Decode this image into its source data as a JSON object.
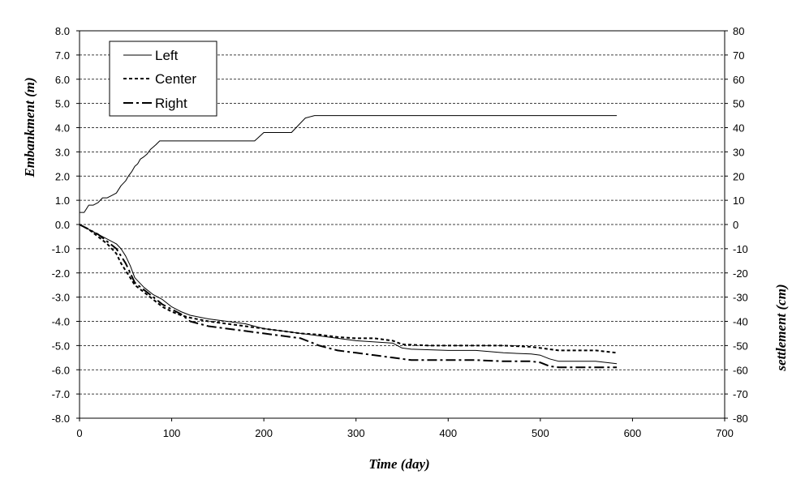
{
  "chart_data": {
    "type": "line",
    "title": "",
    "xlabel": "Time (day)",
    "ylabel_left": "Embankment (m)",
    "ylabel_right": "settlement (cm)",
    "xlim": [
      0,
      700
    ],
    "ylim_left": [
      -8,
      8
    ],
    "ylim_right": [
      -80,
      80
    ],
    "x_ticks": [
      "0",
      "100",
      "200",
      "300",
      "400",
      "500",
      "600",
      "700"
    ],
    "y_left_ticks": [
      "8.0",
      "7.0",
      "6.0",
      "5.0",
      "4.0",
      "3.0",
      "2.0",
      "1.0",
      "0.0",
      "-1.0",
      "-2.0",
      "-3.0",
      "-4.0",
      "-5.0",
      "-6.0",
      "-7.0",
      "-8.0"
    ],
    "y_right_ticks": [
      "80",
      "70",
      "60",
      "50",
      "40",
      "30",
      "20",
      "10",
      "0",
      "-10",
      "-20",
      "-30",
      "-40",
      "-50",
      "-60",
      "-70",
      "-80"
    ],
    "grid": "horizontal dashed",
    "legend": {
      "position": "top-left",
      "entries": [
        "Left",
        "Center",
        "Right"
      ]
    },
    "embankment": {
      "name": "Embankment",
      "axis": "left",
      "x": [
        0,
        5,
        10,
        15,
        20,
        25,
        30,
        35,
        40,
        45,
        50,
        53,
        57,
        60,
        63,
        66,
        70,
        73,
        77,
        80,
        83,
        87,
        90,
        120,
        150,
        180,
        190,
        200,
        215,
        230,
        240,
        245,
        255,
        300,
        400,
        500,
        583
      ],
      "y": [
        0.5,
        0.5,
        0.8,
        0.8,
        0.9,
        1.1,
        1.1,
        1.2,
        1.3,
        1.6,
        1.8,
        2.0,
        2.2,
        2.4,
        2.5,
        2.7,
        2.8,
        2.9,
        3.1,
        3.2,
        3.3,
        3.45,
        3.45,
        3.45,
        3.45,
        3.45,
        3.45,
        3.8,
        3.8,
        3.8,
        4.2,
        4.4,
        4.5,
        4.5,
        4.5,
        4.5,
        4.5
      ]
    },
    "series": [
      {
        "name": "Left",
        "axis": "right",
        "style": "solid",
        "x": [
          0,
          10,
          20,
          30,
          40,
          45,
          50,
          55,
          60,
          70,
          80,
          90,
          100,
          110,
          120,
          140,
          160,
          180,
          200,
          220,
          240,
          260,
          280,
          300,
          320,
          340,
          350,
          360,
          400,
          430,
          460,
          490,
          500,
          510,
          520,
          540,
          560,
          583
        ],
        "y": [
          0,
          -2,
          -4,
          -6,
          -8,
          -10,
          -13,
          -17,
          -22,
          -26,
          -29,
          -31,
          -34,
          -36,
          -37.5,
          -39,
          -40,
          -41,
          -43,
          -44,
          -45,
          -46,
          -47,
          -48,
          -48.5,
          -49,
          -51,
          -51.5,
          -52,
          -52,
          -53,
          -53.5,
          -54,
          -55.5,
          -56.5,
          -56.5,
          -56.5,
          -57.5
        ]
      },
      {
        "name": "Center",
        "axis": "right",
        "style": "dashed",
        "x": [
          0,
          10,
          20,
          30,
          40,
          45,
          50,
          55,
          60,
          70,
          80,
          90,
          100,
          110,
          120,
          140,
          160,
          180,
          200,
          220,
          240,
          260,
          280,
          300,
          320,
          340,
          350,
          380,
          400,
          430,
          460,
          490,
          500,
          510,
          520,
          540,
          560,
          583
        ],
        "y": [
          0,
          -2,
          -5,
          -8,
          -12,
          -16,
          -19,
          -22,
          -25,
          -28,
          -31,
          -34,
          -36,
          -37.5,
          -38.5,
          -40,
          -41,
          -42,
          -43,
          -44,
          -45,
          -45.5,
          -46.5,
          -47,
          -47,
          -48,
          -49.5,
          -50,
          -50,
          -50,
          -50,
          -50.5,
          -51,
          -51.5,
          -52,
          -52,
          -52,
          -53
        ]
      },
      {
        "name": "Right",
        "axis": "right",
        "style": "dash-dot",
        "x": [
          0,
          10,
          20,
          30,
          40,
          45,
          50,
          55,
          60,
          70,
          80,
          90,
          100,
          110,
          120,
          140,
          160,
          180,
          200,
          220,
          240,
          260,
          280,
          300,
          320,
          340,
          350,
          360,
          400,
          430,
          460,
          490,
          500,
          510,
          520,
          540,
          560,
          583
        ],
        "y": [
          0,
          -2,
          -4,
          -7,
          -10,
          -13,
          -16,
          -20,
          -24,
          -27,
          -30,
          -33,
          -35,
          -37,
          -40,
          -42,
          -43,
          -44,
          -45,
          -46,
          -47,
          -50,
          -52,
          -53,
          -54,
          -55,
          -55.5,
          -56,
          -56,
          -56,
          -56.5,
          -56.5,
          -57,
          -58.5,
          -59,
          -59,
          -59,
          -59
        ]
      }
    ]
  }
}
